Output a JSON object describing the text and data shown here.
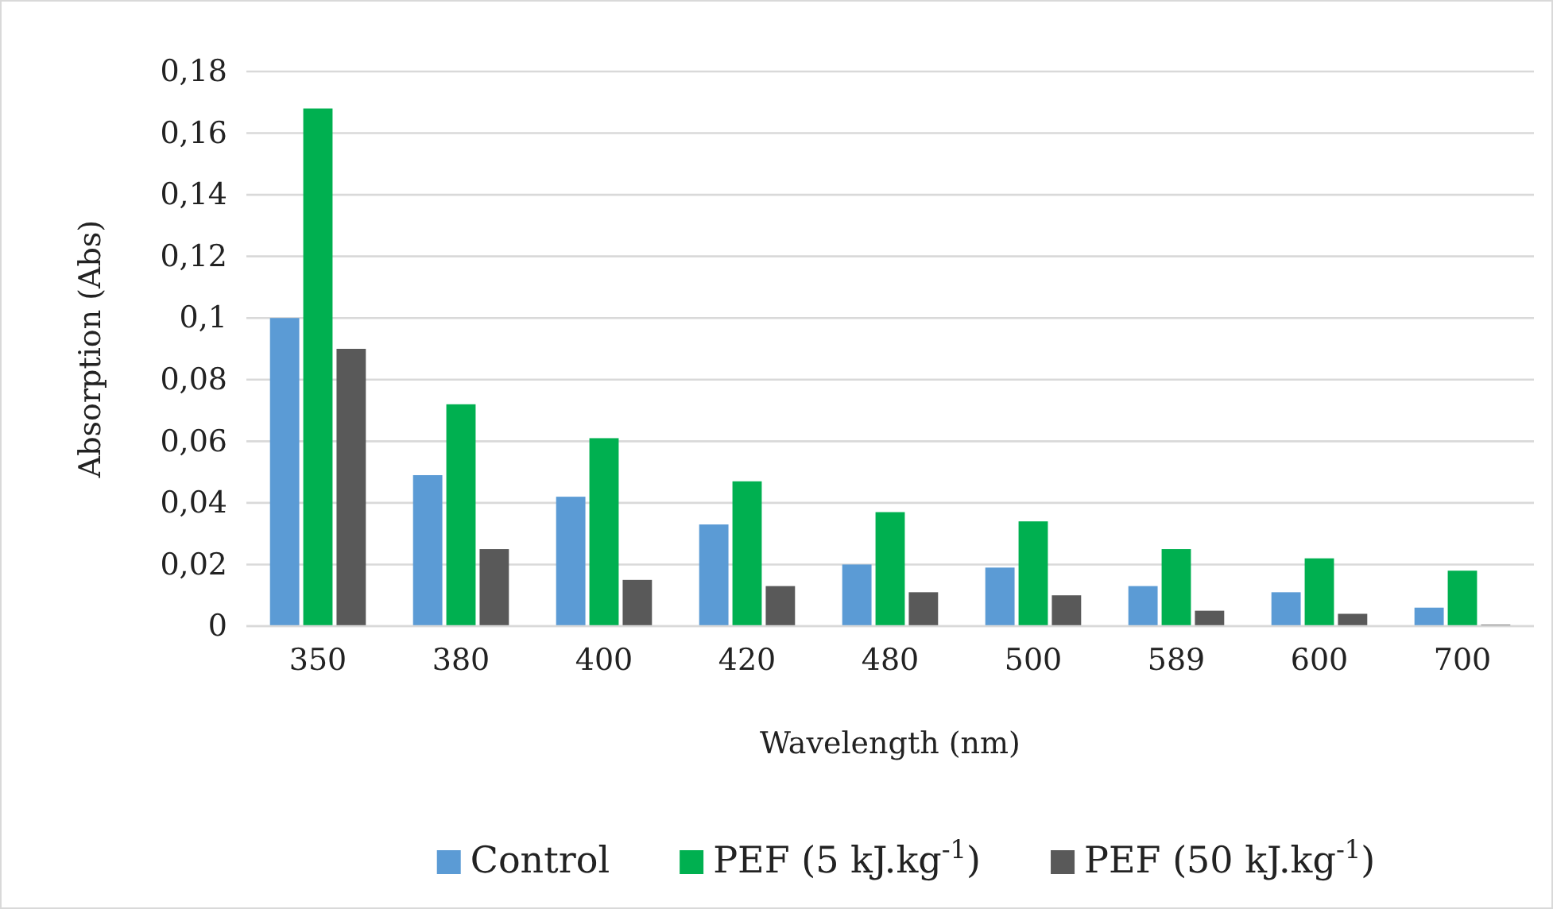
{
  "chart_data": {
    "type": "bar",
    "xlabel": "Wavelength (nm)",
    "ylabel": "Absorption (Abs)",
    "categories": [
      "350",
      "380",
      "400",
      "420",
      "480",
      "500",
      "589",
      "600",
      "700"
    ],
    "series": [
      {
        "name": "Control",
        "color": "#5b9bd5",
        "values": [
          0.1,
          0.049,
          0.042,
          0.033,
          0.02,
          0.019,
          0.013,
          0.011,
          0.006
        ]
      },
      {
        "name": "PEF (5 kJ.kg$^{-1}$)",
        "color": "#00b050",
        "values": [
          0.168,
          0.072,
          0.061,
          0.047,
          0.037,
          0.034,
          0.025,
          0.022,
          0.018
        ]
      },
      {
        "name": "PEF (50 kJ.kg$^{-1}$)",
        "color": "#595959",
        "values": [
          0.09,
          0.025,
          0.015,
          0.013,
          0.011,
          0.01,
          0.005,
          0.004,
          0.0005
        ]
      }
    ],
    "ylim": [
      0,
      0.18
    ],
    "yticks": [
      {
        "value": 0,
        "label": "0"
      },
      {
        "value": 0.02,
        "label": "0,02"
      },
      {
        "value": 0.04,
        "label": "0,04"
      },
      {
        "value": 0.06,
        "label": "0,06"
      },
      {
        "value": 0.08,
        "label": "0,08"
      },
      {
        "value": 0.1,
        "label": "0,1"
      },
      {
        "value": 0.12,
        "label": "0,12"
      },
      {
        "value": 0.14,
        "label": "0,14"
      },
      {
        "value": 0.16,
        "label": "0,16"
      },
      {
        "value": 0.18,
        "label": "0,18"
      }
    ],
    "grid": "y",
    "legend": "bottom"
  }
}
